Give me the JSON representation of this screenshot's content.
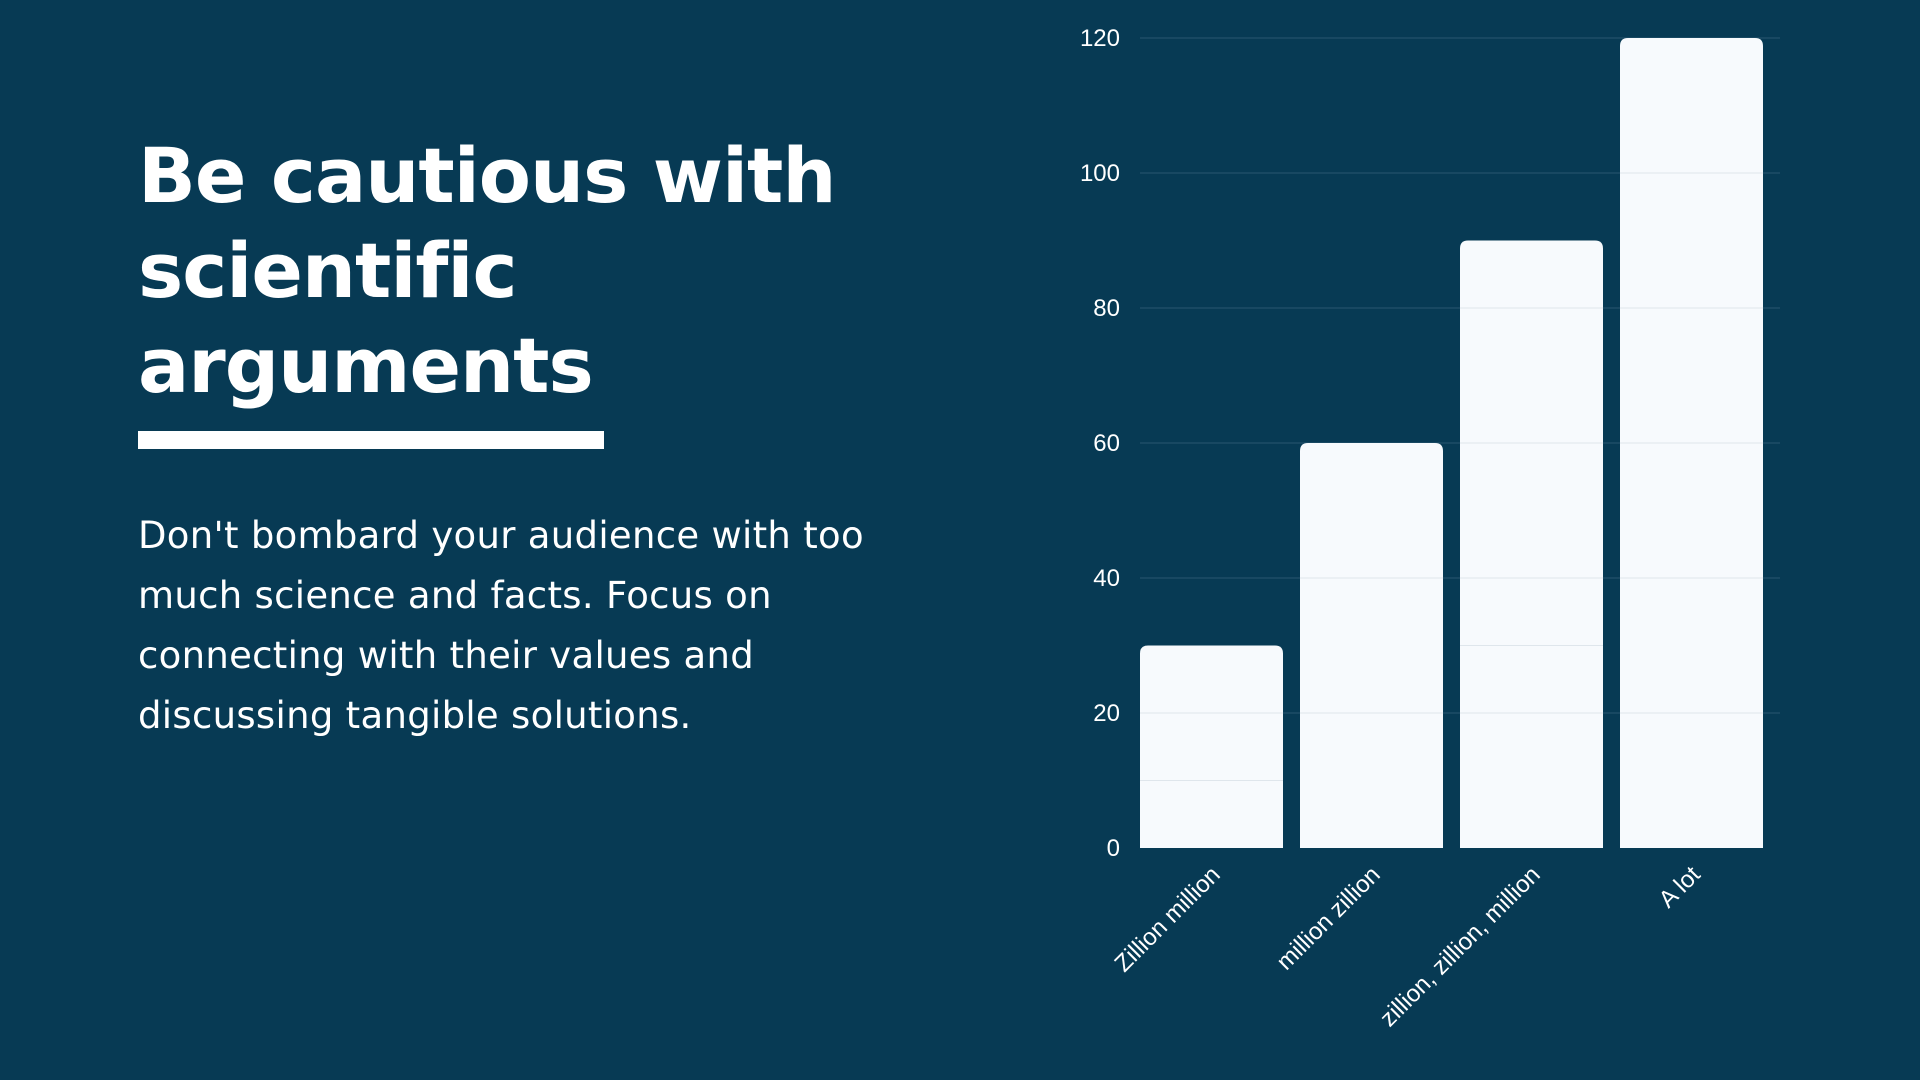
{
  "slide": {
    "title": "Be cautious with scientific arguments",
    "body": "Don't bombard your audience with too much science and facts. Focus on connecting with their values and discussing tangible solutions."
  },
  "colors": {
    "background": "#073a54",
    "bar": "#f7fafd",
    "text": "#ffffff",
    "grid": "#2a5670"
  },
  "chart_data": {
    "type": "bar",
    "categories": [
      "Zillion million",
      "million zillion",
      "zillion, zillion, million",
      "A lot"
    ],
    "values": [
      30,
      60,
      90,
      120
    ],
    "yticks": [
      0,
      20,
      40,
      60,
      80,
      100,
      120
    ],
    "ylim": [
      0,
      120
    ],
    "grid": true,
    "legend": "none"
  }
}
